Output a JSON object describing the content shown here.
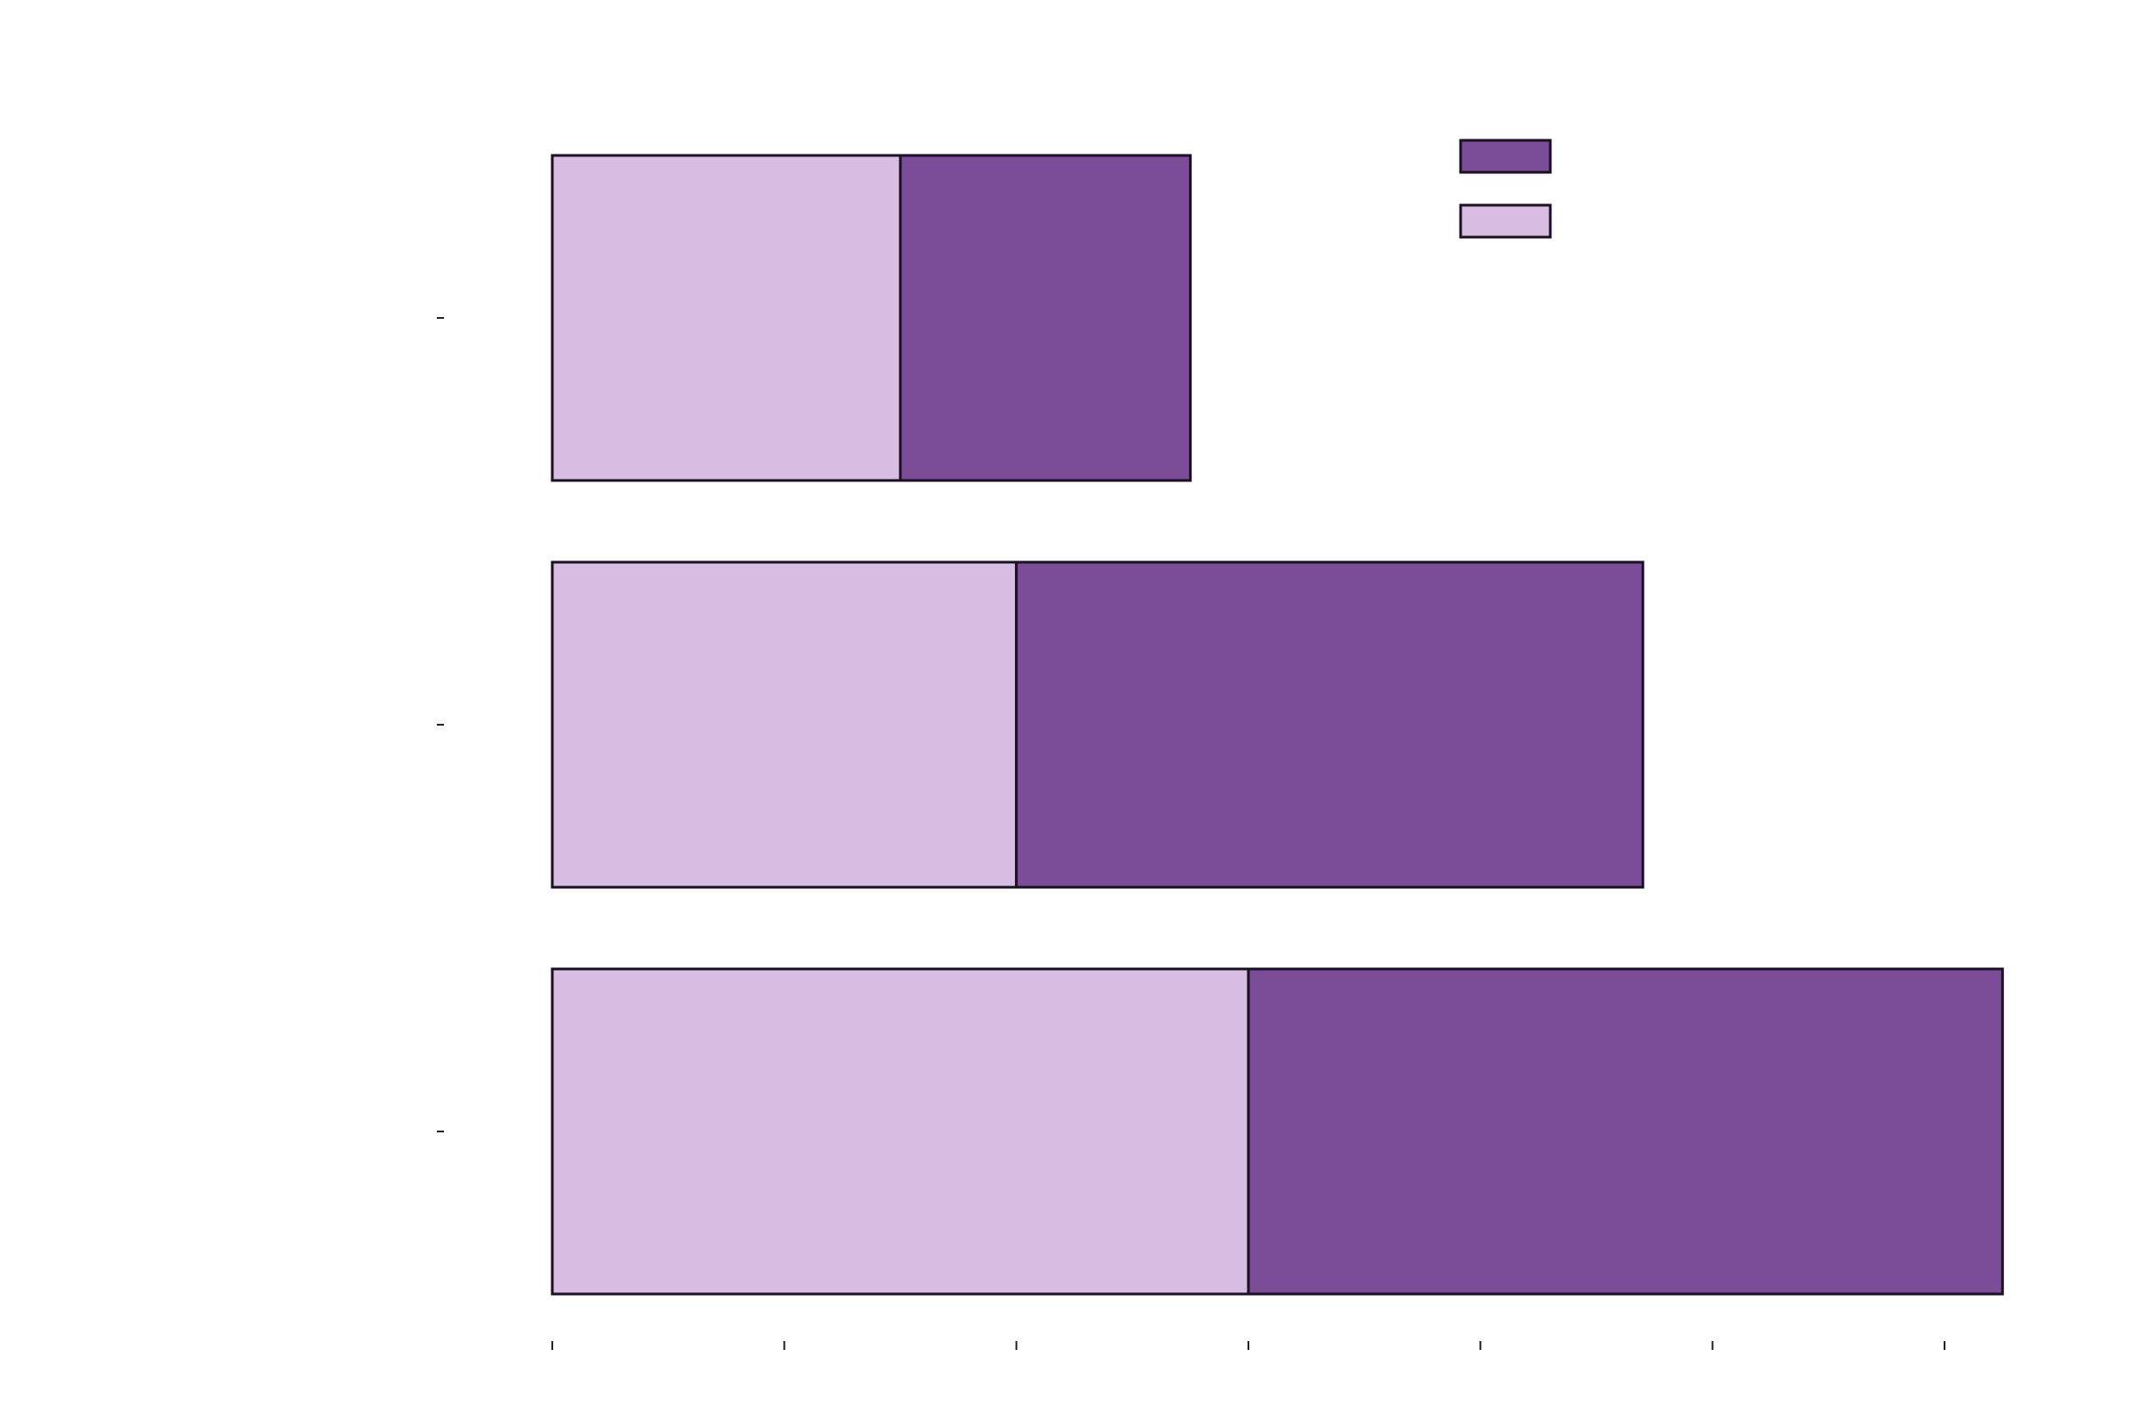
{
  "chart_data": {
    "type": "bar",
    "orientation": "horizontal",
    "stacked": true,
    "title": "",
    "xlabel": "",
    "ylabel": "",
    "categories": [
      "",
      "",
      ""
    ],
    "series": [
      {
        "color": "#d7bde2",
        "values": [
          1.5,
          2.0,
          3.0
        ]
      },
      {
        "color": "#7b4d99",
        "values": [
          1.25,
          2.7,
          3.25
        ]
      }
    ],
    "xlim": [
      0,
      6
    ],
    "x_ticks": [
      0,
      1,
      2,
      3,
      4,
      5,
      6
    ],
    "x_tick_labels_visible": false,
    "y_tick_labels_visible": false,
    "grid": false,
    "legend": {
      "position": "top-right",
      "order": [
        1,
        0
      ],
      "labels": [
        "",
        ""
      ]
    }
  }
}
